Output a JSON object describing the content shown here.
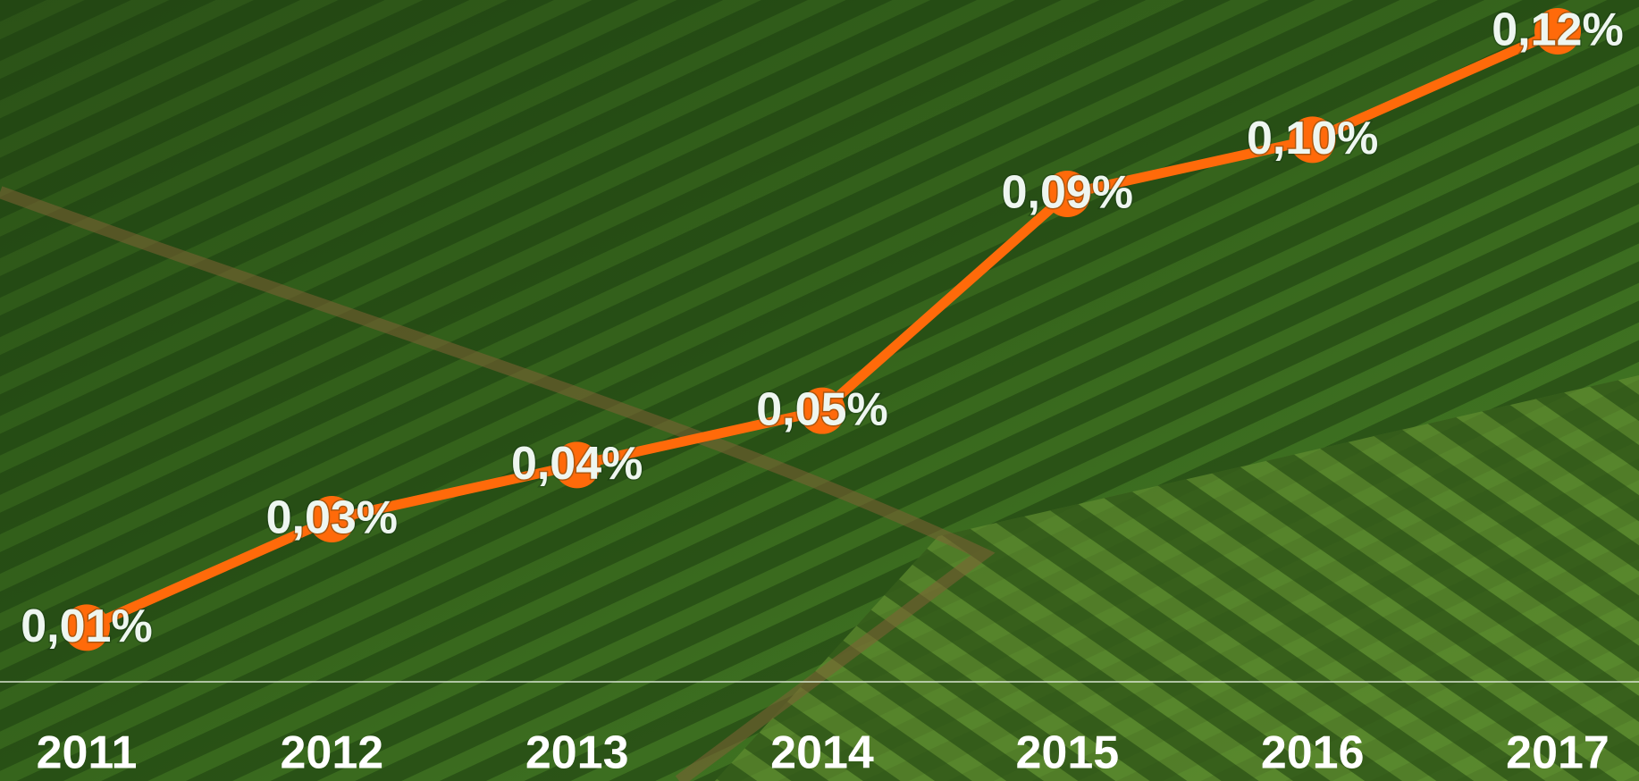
{
  "chart_data": {
    "type": "line",
    "categories": [
      "2011",
      "2012",
      "2013",
      "2014",
      "2015",
      "2016",
      "2017"
    ],
    "series": [
      {
        "values": [
          0.01,
          0.03,
          0.04,
          0.05,
          0.09,
          0.1,
          0.12
        ],
        "value_labels": [
          "0,01%",
          "0,03%",
          "0,04%",
          "0,05%",
          "0,09%",
          "0,10%",
          "0,12%"
        ],
        "color": "#ff6a0a"
      }
    ],
    "ylim": [
      0,
      0.12
    ]
  }
}
